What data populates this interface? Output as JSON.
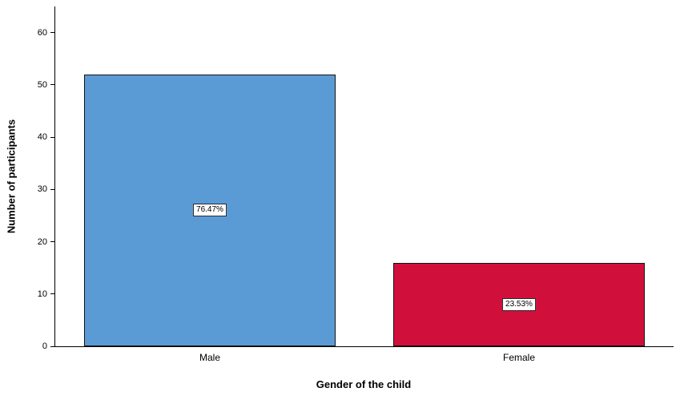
{
  "chart_data": {
    "type": "bar",
    "categories": [
      "Male",
      "Female"
    ],
    "values": [
      52,
      16
    ],
    "bar_labels": [
      "76.47%",
      "23.53%"
    ],
    "colors": [
      "#5B9BD5",
      "#D0103A"
    ],
    "title": "",
    "xlabel": "Gender of the child",
    "ylabel": "Number of participants",
    "ylim": [
      0,
      65
    ],
    "yticks": [
      0,
      10,
      20,
      30,
      40,
      50,
      60
    ],
    "grid": false,
    "legend": "none",
    "background": "#FFFFFF",
    "axis_color": "#000000"
  }
}
